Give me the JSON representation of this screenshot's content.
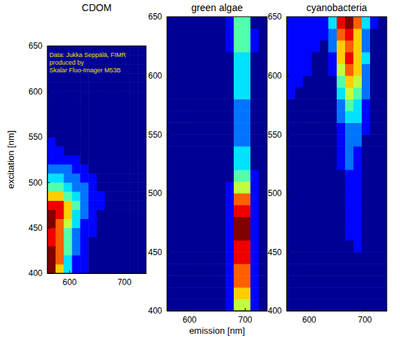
{
  "chart_data": [
    {
      "type": "heatmap",
      "title": "CDOM",
      "ylabel": "excitation [nm]",
      "annotations": [
        "Data: Jukka Seppälä, FIMR",
        "produced by",
        "Skalar Fluo-Imager M53B"
      ],
      "xlim": [
        560,
        740
      ],
      "xticks": [
        600,
        700
      ],
      "ylim": [
        400,
        650
      ],
      "yticks": [
        400,
        450,
        500,
        550,
        600,
        650
      ],
      "x": [
        567.5,
        582.5,
        597.5,
        612.5,
        627.5,
        642.5,
        657.5,
        672.5,
        687.5,
        702.5,
        717.5,
        732.5
      ],
      "y": [
        405,
        415,
        425,
        435,
        445,
        455,
        465,
        475,
        485,
        495,
        505,
        515,
        525,
        535,
        545,
        555,
        565,
        575,
        585,
        595,
        605,
        615,
        625,
        635,
        645
      ],
      "values": [
        [
          9,
          6,
          3,
          1,
          1,
          0,
          0,
          0,
          0,
          0,
          0,
          0
        ],
        [
          9,
          7,
          3,
          1,
          1,
          0,
          0,
          0,
          0,
          0,
          0,
          0
        ],
        [
          9,
          7,
          4,
          2,
          1,
          0,
          0,
          0,
          0,
          0,
          0,
          0
        ],
        [
          8,
          7,
          4,
          2,
          1,
          0,
          0,
          0,
          0,
          0,
          0,
          0
        ],
        [
          8,
          7,
          4,
          2,
          1,
          1,
          0,
          0,
          0,
          0,
          0,
          0
        ],
        [
          9,
          7,
          5,
          3,
          1,
          1,
          0,
          0,
          0,
          0,
          0,
          0
        ],
        [
          9,
          8,
          6,
          3,
          2,
          1,
          0,
          0,
          0,
          0,
          0,
          0
        ],
        [
          8,
          8,
          6,
          4,
          2,
          1,
          1,
          0,
          0,
          0,
          0,
          0
        ],
        [
          6,
          6,
          4,
          3,
          2,
          1,
          1,
          0,
          0,
          0,
          0,
          0
        ],
        [
          4,
          4,
          3,
          2,
          2,
          1,
          0,
          0,
          0,
          0,
          0,
          0
        ],
        [
          3,
          3,
          2,
          2,
          1,
          1,
          0,
          0,
          0,
          0,
          0,
          0
        ],
        [
          2,
          2,
          2,
          1,
          1,
          0,
          0,
          0,
          0,
          0,
          0,
          0
        ],
        [
          1,
          1,
          1,
          1,
          0,
          0,
          0,
          0,
          0,
          0,
          0,
          0
        ],
        [
          1,
          1,
          0,
          0,
          0,
          0,
          0,
          0,
          0,
          0,
          0,
          0
        ],
        [
          1,
          0,
          0,
          0,
          0,
          0,
          0,
          0,
          0,
          0,
          0,
          0
        ],
        [
          0,
          0,
          0,
          0,
          0,
          0,
          0,
          0,
          0,
          0,
          0,
          0
        ],
        [
          0,
          0,
          0,
          0,
          0,
          0,
          0,
          0,
          0,
          0,
          0,
          0
        ],
        [
          0,
          0,
          0,
          0,
          0,
          0,
          0,
          0,
          0,
          0,
          0,
          0
        ],
        [
          0,
          0,
          0,
          0,
          0,
          0,
          0,
          0,
          0,
          0,
          0,
          0
        ],
        [
          0,
          0,
          0,
          0,
          0,
          0,
          0,
          0,
          0,
          0,
          0,
          0
        ],
        [
          0,
          0,
          0,
          0,
          0,
          0,
          0,
          0,
          0,
          0,
          0,
          0
        ],
        [
          0,
          0,
          0,
          0,
          0,
          0,
          0,
          0,
          0,
          0,
          0,
          0
        ],
        [
          0,
          0,
          0,
          0,
          0,
          0,
          0,
          0,
          0,
          0,
          0,
          0
        ],
        [
          0,
          0,
          0,
          0,
          0,
          0,
          0,
          0,
          0,
          0,
          0,
          0
        ],
        [
          0,
          0,
          0,
          0,
          0,
          0,
          0,
          0,
          0,
          0,
          0,
          0
        ]
      ]
    },
    {
      "type": "heatmap",
      "title": "green algae",
      "xlabel": "emission [nm]",
      "xlim": [
        560,
        740
      ],
      "xticks": [
        600,
        700
      ],
      "ylim": [
        400,
        650
      ],
      "yticks": [
        400,
        450,
        500,
        550,
        600,
        650
      ],
      "x": [
        567.5,
        582.5,
        597.5,
        612.5,
        627.5,
        642.5,
        657.5,
        672.5,
        687.5,
        702.5,
        717.5,
        732.5
      ],
      "y": [
        405,
        415,
        425,
        435,
        445,
        455,
        465,
        475,
        485,
        495,
        505,
        515,
        525,
        535,
        545,
        555,
        565,
        575,
        585,
        595,
        605,
        615,
        625,
        635,
        645
      ],
      "values": [
        [
          0,
          0,
          0,
          0,
          0,
          0,
          0,
          1,
          5,
          5,
          1,
          0
        ],
        [
          0,
          0,
          0,
          0,
          0,
          0,
          0,
          1,
          6,
          6,
          1,
          0
        ],
        [
          0,
          0,
          0,
          0,
          0,
          0,
          0,
          1,
          7,
          7,
          1,
          0
        ],
        [
          0,
          0,
          0,
          0,
          0,
          0,
          0,
          1,
          7,
          7,
          1,
          0
        ],
        [
          0,
          0,
          0,
          0,
          0,
          0,
          0,
          1,
          8,
          8,
          1,
          0
        ],
        [
          0,
          0,
          0,
          0,
          0,
          0,
          0,
          1,
          8,
          8,
          1,
          0
        ],
        [
          0,
          0,
          0,
          0,
          0,
          0,
          0,
          1,
          9,
          9,
          1,
          0
        ],
        [
          0,
          0,
          0,
          0,
          0,
          0,
          0,
          1,
          9,
          9,
          1,
          0
        ],
        [
          0,
          0,
          0,
          0,
          0,
          0,
          0,
          1,
          8,
          8,
          1,
          0
        ],
        [
          0,
          0,
          0,
          0,
          0,
          0,
          0,
          1,
          7,
          7,
          1,
          0
        ],
        [
          0,
          0,
          0,
          0,
          0,
          0,
          0,
          1,
          5,
          5,
          1,
          0
        ],
        [
          0,
          0,
          0,
          0,
          0,
          0,
          0,
          0,
          4,
          4,
          1,
          0
        ],
        [
          0,
          0,
          0,
          0,
          0,
          0,
          0,
          0,
          3,
          3,
          0,
          0
        ],
        [
          0,
          0,
          0,
          0,
          0,
          0,
          0,
          0,
          3,
          3,
          0,
          0
        ],
        [
          0,
          0,
          0,
          0,
          0,
          0,
          0,
          0,
          2,
          2,
          0,
          0
        ],
        [
          0,
          0,
          0,
          0,
          0,
          0,
          0,
          0,
          2,
          2,
          0,
          0
        ],
        [
          0,
          0,
          0,
          0,
          0,
          0,
          0,
          0,
          2,
          2,
          0,
          0
        ],
        [
          0,
          0,
          0,
          0,
          0,
          0,
          0,
          0,
          2,
          2,
          0,
          0
        ],
        [
          0,
          0,
          0,
          0,
          0,
          0,
          0,
          0,
          3,
          3,
          0,
          0
        ],
        [
          0,
          0,
          0,
          0,
          0,
          0,
          0,
          0,
          3,
          3,
          0,
          0
        ],
        [
          0,
          0,
          0,
          0,
          0,
          0,
          0,
          0,
          3,
          3,
          0,
          0
        ],
        [
          0,
          0,
          0,
          0,
          0,
          0,
          0,
          0,
          3,
          3,
          0,
          0
        ],
        [
          0,
          0,
          0,
          0,
          0,
          0,
          0,
          1,
          4,
          4,
          1,
          0
        ],
        [
          0,
          0,
          0,
          0,
          0,
          0,
          0,
          1,
          4,
          4,
          1,
          0
        ],
        [
          0,
          0,
          0,
          0,
          0,
          0,
          0,
          1,
          4,
          4,
          0,
          0
        ]
      ]
    },
    {
      "type": "heatmap",
      "title": "cyanobacteria",
      "xlim": [
        560,
        740
      ],
      "xticks": [
        600,
        700
      ],
      "ylim": [
        400,
        650
      ],
      "yticks": [
        400,
        450,
        500,
        550,
        600,
        650
      ],
      "x": [
        567.5,
        582.5,
        597.5,
        612.5,
        627.5,
        642.5,
        657.5,
        672.5,
        687.5,
        702.5,
        717.5,
        732.5
      ],
      "y": [
        405,
        415,
        425,
        435,
        445,
        455,
        465,
        475,
        485,
        495,
        505,
        515,
        525,
        535,
        545,
        555,
        565,
        575,
        585,
        595,
        605,
        615,
        625,
        635,
        645
      ],
      "values": [
        [
          0,
          0,
          0,
          0,
          0,
          0,
          0,
          0,
          0,
          0,
          0,
          0
        ],
        [
          0,
          0,
          0,
          0,
          0,
          0,
          0,
          0,
          0,
          0,
          0,
          0
        ],
        [
          0,
          0,
          0,
          0,
          0,
          0,
          0,
          0,
          0,
          0,
          0,
          0
        ],
        [
          0,
          0,
          0,
          0,
          0,
          0,
          0,
          0,
          0,
          0,
          0,
          0
        ],
        [
          0,
          0,
          0,
          0,
          0,
          0,
          0,
          0,
          0,
          0,
          0,
          0
        ],
        [
          0,
          0,
          0,
          0,
          0,
          0,
          0,
          0,
          1,
          0,
          0,
          0
        ],
        [
          0,
          0,
          0,
          0,
          0,
          0,
          0,
          1,
          1,
          0,
          0,
          0
        ],
        [
          0,
          0,
          0,
          0,
          0,
          0,
          0,
          1,
          1,
          0,
          0,
          0
        ],
        [
          0,
          0,
          0,
          0,
          0,
          0,
          0,
          1,
          1,
          0,
          0,
          0
        ],
        [
          0,
          0,
          0,
          0,
          0,
          0,
          0,
          1,
          1,
          0,
          0,
          0
        ],
        [
          0,
          0,
          0,
          0,
          0,
          0,
          0,
          1,
          1,
          0,
          0,
          0
        ],
        [
          0,
          0,
          0,
          0,
          0,
          0,
          0,
          1,
          1,
          0,
          0,
          0
        ],
        [
          0,
          0,
          0,
          0,
          0,
          0,
          1,
          2,
          1,
          0,
          0,
          0
        ],
        [
          0,
          0,
          0,
          0,
          0,
          0,
          1,
          2,
          1,
          0,
          0,
          0
        ],
        [
          0,
          0,
          0,
          0,
          0,
          0,
          1,
          2,
          2,
          0,
          0,
          0
        ],
        [
          0,
          0,
          0,
          0,
          0,
          0,
          1,
          2,
          2,
          1,
          0,
          0
        ],
        [
          0,
          0,
          0,
          0,
          0,
          0,
          2,
          3,
          3,
          1,
          0,
          0
        ],
        [
          0,
          0,
          0,
          0,
          0,
          0,
          2,
          4,
          3,
          1,
          0,
          0
        ],
        [
          1,
          0,
          0,
          0,
          0,
          0,
          3,
          5,
          4,
          2,
          0,
          0
        ],
        [
          1,
          1,
          0,
          0,
          0,
          0,
          4,
          6,
          5,
          2,
          0,
          0
        ],
        [
          1,
          1,
          1,
          0,
          0,
          1,
          5,
          7,
          6,
          2,
          0,
          0
        ],
        [
          1,
          1,
          1,
          0,
          0,
          1,
          6,
          8,
          6,
          3,
          0,
          0
        ],
        [
          1,
          1,
          1,
          1,
          0,
          2,
          6,
          7,
          6,
          2,
          0,
          0
        ],
        [
          1,
          1,
          1,
          1,
          1,
          2,
          7,
          8,
          6,
          2,
          0,
          0
        ],
        [
          1,
          1,
          1,
          1,
          1,
          3,
          8,
          9,
          7,
          3,
          1,
          0
        ]
      ]
    }
  ]
}
